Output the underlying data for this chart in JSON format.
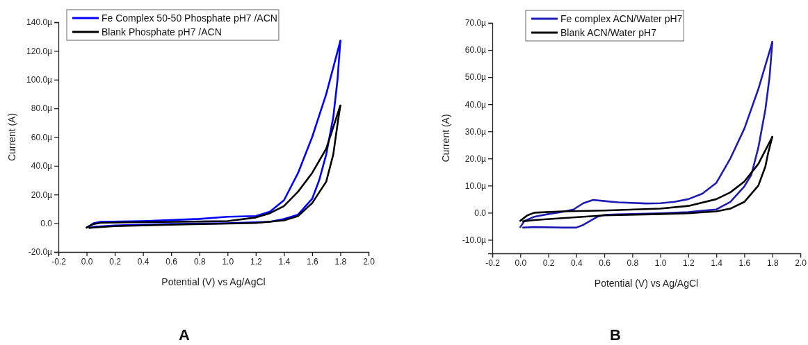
{
  "chart_data": [
    {
      "type": "line",
      "xlabel": "Potential (V) vs Ag/AgCl",
      "ylabel": "Current (A)",
      "annotations": [
        "A"
      ],
      "legend": "top",
      "grid": false,
      "line_style": "solid",
      "marker": "none",
      "xlim": [
        -0.2,
        2.0
      ],
      "xticks": [
        -0.2,
        {
          "value": 0,
          "label": "0.0"
        },
        0.2,
        0.4,
        0.6,
        0.8,
        {
          "value": 1,
          "label": "1.0"
        },
        1.2,
        1.4,
        1.6,
        1.8,
        {
          "value": 2,
          "label": "2.0"
        }
      ],
      "ylim": [
        -20,
        140
      ],
      "yticks": [
        {
          "value": -20,
          "label": "-20.0µ"
        },
        {
          "value": 0,
          "label": "0.0"
        },
        {
          "value": 20,
          "label": "20.0µ"
        },
        {
          "value": 40,
          "label": "40.0µ"
        },
        {
          "value": 60,
          "label": "60.0µ"
        },
        {
          "value": 80,
          "label": "80.0µ"
        },
        {
          "value": 100,
          "label": "100.0µ"
        },
        {
          "value": 120,
          "label": "120.0µ"
        },
        {
          "value": 140,
          "label": "140.0µ"
        }
      ],
      "series": [
        {
          "name": "Fe Complex 50-50 Phosphate pH7 /ACN",
          "color": "#0000ff",
          "x": [
            0,
            0.05,
            0.1,
            0.4,
            0.8,
            1.0,
            1.2,
            1.3,
            1.4,
            1.5,
            1.6,
            1.7,
            1.8
          ],
          "values": [
            -3,
            0,
            1,
            1.5,
            3,
            4.5,
            5,
            8,
            16,
            35,
            60,
            90,
            127
          ]
        },
        {
          "color": "#0000ff",
          "x": [
            1.8,
            1.78,
            1.75,
            1.7,
            1.65,
            1.6,
            1.5,
            1.4,
            1.3,
            1.0,
            0.6,
            0.2,
            0.05,
            0.02
          ],
          "values": [
            127,
            100,
            74,
            48,
            30,
            17,
            6,
            3,
            1,
            0,
            -0.5,
            -1.5,
            -2.5,
            -3.2
          ]
        },
        {
          "name": "Blank Phosphate pH7 /ACN",
          "color": "#000000",
          "x": [
            0,
            0.05,
            0.1,
            0.4,
            0.8,
            1.0,
            1.2,
            1.3,
            1.4,
            1.5,
            1.6,
            1.7,
            1.8
          ],
          "values": [
            -3,
            -0.5,
            0.3,
            0.8,
            1.2,
            1.5,
            4,
            7,
            12,
            22,
            35,
            52,
            82
          ]
        },
        {
          "color": "#000000",
          "x": [
            1.8,
            1.78,
            1.75,
            1.7,
            1.6,
            1.5,
            1.4,
            1.2,
            0.6,
            0.2,
            0.02
          ],
          "values": [
            82,
            69,
            48,
            29,
            14,
            5,
            2,
            0.2,
            -1,
            -2,
            -3.2
          ]
        }
      ]
    },
    {
      "type": "line",
      "xlabel": "Potential (V) vs Ag/AgCl",
      "ylabel": "Current (A)",
      "annotations": [
        "B"
      ],
      "legend": "top",
      "grid": false,
      "line_style": "solid",
      "marker": "none",
      "xlim": [
        -0.2,
        2.0
      ],
      "xticks": [
        -0.2,
        {
          "value": 0,
          "label": "0.0"
        },
        0.2,
        0.4,
        0.6,
        0.8,
        {
          "value": 1,
          "label": "1.0"
        },
        1.2,
        1.4,
        1.6,
        1.8,
        {
          "value": 2,
          "label": "2.0"
        }
      ],
      "ylim": [
        -15,
        70
      ],
      "yticks": [
        {
          "value": -10,
          "label": "-10.0µ"
        },
        {
          "value": 0,
          "label": "0.0"
        },
        {
          "value": 10,
          "label": "10.0µ"
        },
        {
          "value": 20,
          "label": "20.0µ"
        },
        {
          "value": 30,
          "label": "30.0µ"
        },
        {
          "value": 40,
          "label": "40.0µ"
        },
        {
          "value": 50,
          "label": "50.0µ"
        },
        {
          "value": 60,
          "label": "60.0µ"
        },
        {
          "value": 70,
          "label": "70.0µ"
        }
      ],
      "series": [
        {
          "name": "Fe complex ACN/Water pH7",
          "color": "#1c1cb4",
          "x": [
            0,
            0.03,
            0.1,
            0.2,
            0.3,
            0.38,
            0.45,
            0.52,
            0.6,
            0.7,
            0.9,
            1.0,
            1.1,
            1.2,
            1.3,
            1.4,
            1.5,
            1.6,
            1.7,
            1.8
          ],
          "values": [
            -5.3,
            -3,
            -1.5,
            -0.5,
            0.3,
            1.2,
            3.5,
            4.7,
            4.3,
            3.8,
            3.4,
            3.5,
            4,
            5,
            7,
            11,
            20,
            31,
            45.6,
            63
          ]
        },
        {
          "color": "#1c1cb4",
          "x": [
            1.8,
            1.78,
            1.75,
            1.7,
            1.65,
            1.6,
            1.5,
            1.4,
            1.2,
            1.0,
            0.7,
            0.6,
            0.55,
            0.5,
            0.45,
            0.4,
            0.3,
            0.1,
            0.02
          ],
          "values": [
            63,
            50,
            38,
            24,
            14,
            9.7,
            4,
            1.2,
            0.2,
            -0.2,
            -0.6,
            -0.8,
            -1.5,
            -3,
            -4.5,
            -5.5,
            -5.5,
            -5.3,
            -5.5
          ]
        },
        {
          "name": "Blank ACN/Water pH7",
          "color": "#000000",
          "x": [
            0,
            0.05,
            0.1,
            0.3,
            0.6,
            1.0,
            1.2,
            1.4,
            1.5,
            1.6,
            1.7,
            1.8
          ],
          "values": [
            -3,
            -1,
            0,
            0.5,
            0.8,
            1.5,
            2.5,
            5,
            7.5,
            11.5,
            18,
            28
          ]
        },
        {
          "color": "#000000",
          "x": [
            1.8,
            1.77,
            1.75,
            1.7,
            1.6,
            1.5,
            1.4,
            1.2,
            1.0,
            0.6,
            0.3,
            0.1,
            0.02
          ],
          "values": [
            28,
            22,
            17,
            10,
            4,
            1.5,
            0.5,
            -0.2,
            -0.5,
            -1,
            -2,
            -2.7,
            -3.2
          ]
        }
      ]
    }
  ]
}
